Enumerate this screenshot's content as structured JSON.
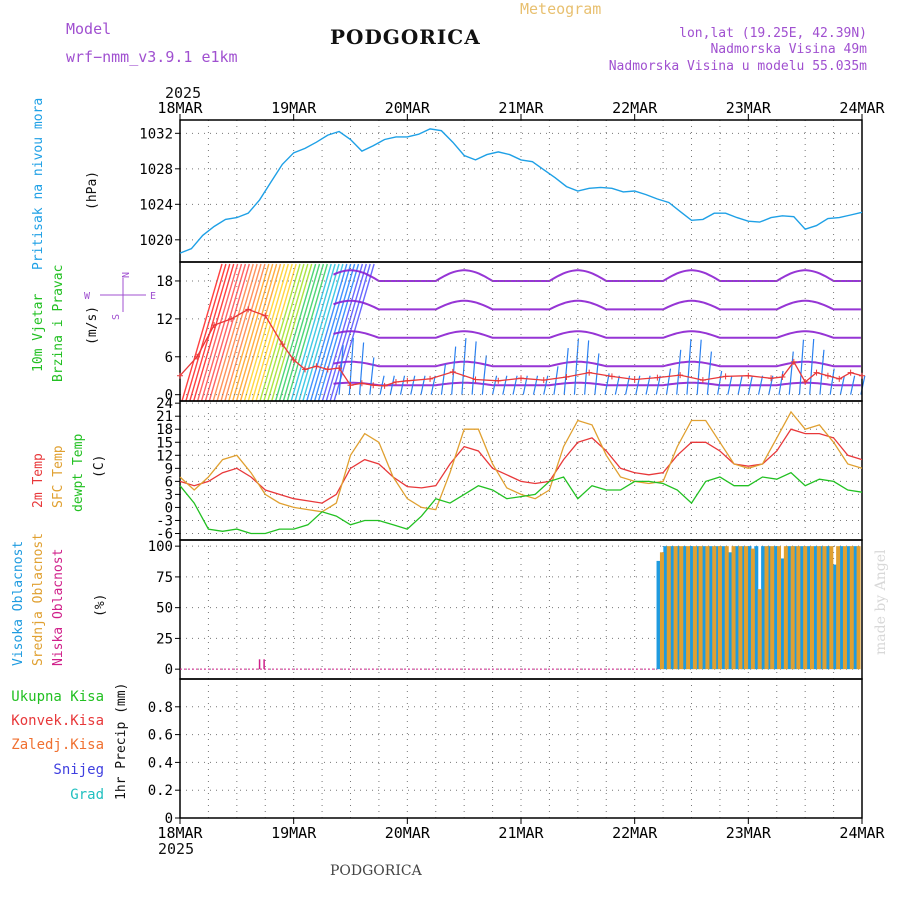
{
  "header": {
    "model_label": "Model",
    "model_name": "wrf−nmm_v3.9.1  e1km",
    "title": "PODGORICA",
    "subtitle": "Meteogram",
    "coords": "lon,lat (19.25E, 42.39N)",
    "altitude": "Nadmorska Visina 49m",
    "model_altitude": "Nadmorska Visina u modelu 55.035m",
    "year_top": "2025",
    "year_bottom": "2025",
    "footer": "PODGORICA",
    "watermark": "made by Angel"
  },
  "colors": {
    "pressure": "#1ea0e6",
    "temp2m": "#e8383a",
    "sfc_temp": "#e0a030",
    "dewpt": "#22c022",
    "high_cloud": "#1e9be0",
    "mid_cloud": "#e0a030",
    "low_cloud": "#d0208a",
    "label_purple": "#a050d0",
    "wind_violet": "#8b1fd0"
  },
  "x_axis": {
    "dates": [
      "18MAR",
      "19MAR",
      "20MAR",
      "21MAR",
      "22MAR",
      "23MAR",
      "24MAR"
    ]
  },
  "panels": {
    "pressure": {
      "ylabel_main": "Pritisak na nivou mora",
      "unit": "(hPa)",
      "ticks": [
        "1020",
        "1024",
        "1028",
        "1032"
      ]
    },
    "wind": {
      "ylabel_line1": "10m Vjetar",
      "ylabel_line2": "Brzina i Pravac",
      "unit": "(m/s)",
      "ticks": [
        "0",
        "6",
        "12",
        "18"
      ],
      "compass": {
        "n": "N",
        "s": "S",
        "w": "W",
        "e": "E"
      }
    },
    "temp": {
      "label_2m": "2m Temp",
      "label_sfc": "SFC Temp",
      "label_dew": "dewpt Temp",
      "unit": "(C)",
      "ticks": [
        "-6",
        "-3",
        "0",
        "3",
        "6",
        "9",
        "12",
        "15",
        "18",
        "21",
        "24"
      ]
    },
    "cloud": {
      "label_high": "Visoka Oblacnost",
      "label_mid": "Srednja Oblacnost",
      "label_low": "Niska Oblacnost",
      "unit": "(%)",
      "ticks": [
        "0",
        "25",
        "50",
        "75",
        "100"
      ]
    },
    "precip": {
      "label_total": "Ukupna Kisa",
      "label_conv": "Konvek.Kisa",
      "label_frozen": "Zaledj.Kisa",
      "label_snow": "Snijeg",
      "label_grad": "Grad",
      "ylabel": "1hr Precip (mm)",
      "ticks": [
        "0",
        "0.2",
        "0.4",
        "0.6",
        "0.8"
      ]
    }
  },
  "chart_data": [
    {
      "type": "line",
      "title": "Pritisak na nivou mora",
      "ylabel": "(hPa)",
      "ylim": [
        1017.5,
        1033.5
      ],
      "x_days": [
        0,
        0.1,
        0.2,
        0.3,
        0.4,
        0.5,
        0.6,
        0.7,
        0.8,
        0.9,
        1.0,
        1.1,
        1.2,
        1.3,
        1.4,
        1.5,
        1.6,
        1.7,
        1.8,
        1.9,
        2.0,
        2.1,
        2.2,
        2.3,
        2.4,
        2.5,
        2.6,
        2.7,
        2.8,
        2.9,
        3.0,
        3.1,
        3.2,
        3.3,
        3.4,
        3.5,
        3.6,
        3.7,
        3.8,
        3.9,
        4.0,
        4.1,
        4.2,
        4.3,
        4.4,
        4.5,
        4.6,
        4.7,
        4.8,
        4.9,
        5.0,
        5.1,
        5.2,
        5.3,
        5.4,
        5.5,
        5.6,
        5.7,
        5.8,
        5.9,
        6.0
      ],
      "values": [
        1018.5,
        1019,
        1020.5,
        1021.5,
        1022.3,
        1022.5,
        1023,
        1024.5,
        1026.5,
        1028.5,
        1029.8,
        1030.3,
        1031,
        1031.8,
        1032.2,
        1031.3,
        1030,
        1030.6,
        1031.3,
        1031.6,
        1031.6,
        1031.9,
        1032.5,
        1032.3,
        1031,
        1029.5,
        1029,
        1029.6,
        1029.9,
        1029.6,
        1029,
        1028.8,
        1027.9,
        1027,
        1026,
        1025.5,
        1025.8,
        1025.9,
        1025.8,
        1025.4,
        1025.5,
        1025.1,
        1024.6,
        1024.2,
        1023.2,
        1022.2,
        1022.3,
        1023,
        1023,
        1022.5,
        1022.1,
        1022,
        1022.5,
        1022.7,
        1022.6,
        1021.2,
        1021.6,
        1022.4,
        1022.5,
        1022.8,
        1023.1
      ]
    },
    {
      "type": "line",
      "title": "10m Vjetar Brzina i Pravac",
      "ylabel": "(m/s)",
      "ylim": [
        -1,
        21
      ],
      "x_days": [
        0,
        0.15,
        0.3,
        0.45,
        0.6,
        0.75,
        0.9,
        1.0,
        1.1,
        1.2,
        1.3,
        1.4,
        1.5,
        1.6,
        1.7,
        1.8,
        1.9,
        2.0,
        2.2,
        2.4,
        2.6,
        2.8,
        3.0,
        3.2,
        3.4,
        3.6,
        3.8,
        4.0,
        4.2,
        4.4,
        4.6,
        4.8,
        5.0,
        5.2,
        5.3,
        5.4,
        5.5,
        5.6,
        5.7,
        5.8,
        5.9,
        6.0
      ],
      "values": [
        3,
        6,
        11,
        12,
        13.5,
        12.5,
        8,
        5.5,
        4,
        4.5,
        4,
        4.2,
        1.5,
        1.8,
        1.5,
        1.4,
        2,
        2.2,
        2.5,
        3.6,
        2.4,
        2.2,
        2.6,
        2.3,
        2.8,
        3.5,
        2.9,
        2.4,
        2.7,
        3.1,
        2.3,
        2.9,
        3,
        2.6,
        2.8,
        5.2,
        2,
        3.5,
        3,
        2.5,
        3.5,
        3
      ]
    },
    {
      "type": "line",
      "title": "2m Temp / SFC Temp / dewpt Temp",
      "ylabel": "(C)",
      "ylim": [
        -7.5,
        24.5
      ],
      "x_days": [
        0,
        0.125,
        0.25,
        0.375,
        0.5,
        0.625,
        0.75,
        0.875,
        1.0,
        1.125,
        1.25,
        1.375,
        1.5,
        1.625,
        1.75,
        1.875,
        2.0,
        2.125,
        2.25,
        2.375,
        2.5,
        2.625,
        2.75,
        2.875,
        3.0,
        3.125,
        3.25,
        3.375,
        3.5,
        3.625,
        3.75,
        3.875,
        4.0,
        4.125,
        4.25,
        4.375,
        4.5,
        4.625,
        4.75,
        4.875,
        5.0,
        5.125,
        5.25,
        5.375,
        5.5,
        5.625,
        5.75,
        5.875,
        6.0
      ],
      "series": [
        {
          "name": "2m Temp",
          "values": [
            6,
            5,
            6,
            8,
            9,
            7,
            4,
            3,
            2,
            1.5,
            1,
            3,
            9,
            11,
            10,
            7,
            4.8,
            4.5,
            5,
            10,
            14,
            13,
            9,
            7.5,
            6,
            5.5,
            6,
            11,
            15,
            16,
            13,
            9,
            8,
            7.5,
            8,
            12,
            15,
            15,
            13,
            10,
            9.5,
            10,
            13,
            18,
            17,
            17,
            16,
            12,
            11
          ]
        },
        {
          "name": "SFC Temp",
          "values": [
            7,
            4,
            7,
            11,
            12,
            8,
            3,
            1,
            0,
            -0.5,
            -1,
            1,
            12,
            17,
            15,
            7,
            2,
            0,
            -0.5,
            8,
            18,
            18,
            10,
            4.5,
            3,
            2,
            4,
            14,
            20,
            19,
            12,
            7,
            6,
            5.5,
            6,
            14,
            20,
            20,
            15,
            10,
            9,
            10,
            16,
            22,
            18,
            19,
            15,
            10,
            9
          ]
        },
        {
          "name": "dewpt Temp",
          "values": [
            5,
            1,
            -5,
            -5.5,
            -5,
            -6,
            -6,
            -5,
            -5,
            -4,
            -1,
            -2,
            -4,
            -3,
            -3,
            -4,
            -5,
            -2,
            2,
            1,
            3,
            5,
            4,
            2,
            2.5,
            3,
            6,
            7,
            2,
            5,
            4,
            4,
            6,
            6,
            5.5,
            4,
            1,
            6,
            7,
            5,
            5,
            7,
            6.5,
            8,
            5,
            6.5,
            6,
            4,
            3.5
          ]
        }
      ]
    },
    {
      "type": "bar",
      "title": "Visoka / Srednja / Niska Oblacnost",
      "ylabel": "(%)",
      "ylim": [
        -8,
        105
      ],
      "series": [
        {
          "name": "Visoka Oblacnost",
          "x_days": [
            4.21,
            4.27,
            4.33,
            4.38,
            4.44,
            4.5,
            4.56,
            4.61,
            4.67,
            4.72,
            4.78,
            4.84,
            4.9,
            4.95,
            5.01,
            5.07,
            5.13,
            5.18,
            5.24,
            5.3,
            5.36,
            5.41,
            5.47,
            5.53,
            5.59,
            5.64,
            5.7,
            5.76,
            5.82,
            5.88,
            5.94
          ],
          "values": [
            88,
            100,
            100,
            100,
            100,
            100,
            100,
            100,
            100,
            100,
            100,
            95,
            100,
            100,
            100,
            100,
            100,
            100,
            100,
            90,
            100,
            100,
            100,
            100,
            100,
            100,
            100,
            85,
            100,
            100,
            100
          ]
        },
        {
          "name": "Srednja Oblacnost",
          "x_days": [
            4.24,
            4.3,
            4.36,
            4.41,
            4.47,
            4.53,
            4.58,
            4.64,
            4.7,
            4.75,
            4.81,
            4.87,
            4.93,
            4.98,
            5.04,
            5.1,
            5.16,
            5.21,
            5.27,
            5.33,
            5.39,
            5.44,
            5.5,
            5.56,
            5.62,
            5.67,
            5.73,
            5.79,
            5.85,
            5.91,
            5.97
          ],
          "values": [
            95,
            100,
            100,
            100,
            100,
            100,
            100,
            100,
            100,
            100,
            100,
            100,
            100,
            100,
            98,
            65,
            100,
            100,
            100,
            100,
            100,
            100,
            100,
            100,
            100,
            100,
            100,
            100,
            100,
            100,
            100
          ]
        },
        {
          "name": "Niska Oblacnost",
          "x_days": [
            0.7,
            0.74
          ],
          "values": [
            8,
            8
          ]
        }
      ]
    },
    {
      "type": "bar",
      "title": "1hr Precip",
      "ylabel": "1hr Precip (mm)",
      "ylim": [
        0,
        1.0
      ],
      "series": [
        {
          "name": "Ukupna Kisa",
          "values": []
        },
        {
          "name": "Konvek.Kisa",
          "values": []
        },
        {
          "name": "Zaledj.Kisa",
          "values": []
        },
        {
          "name": "Snijeg",
          "values": []
        },
        {
          "name": "Grad",
          "values": []
        }
      ]
    }
  ]
}
